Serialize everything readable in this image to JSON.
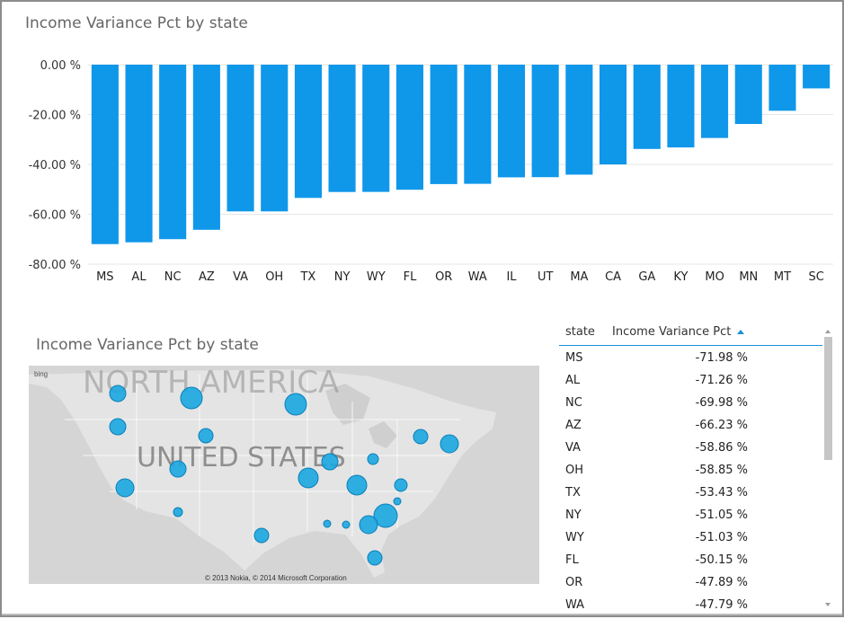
{
  "chart_data": [
    {
      "type": "bar",
      "title": "Income Variance Pct by state",
      "xlabel": "",
      "ylabel": "",
      "ylim": [
        -80,
        0
      ],
      "yticks": [
        "0.00 %",
        "-20.00 %",
        "-40.00 %",
        "-60.00 %",
        "-80.00 %"
      ],
      "bar_color": "#0f97ea",
      "categories": [
        "MS",
        "AL",
        "NC",
        "AZ",
        "VA",
        "OH",
        "TX",
        "NY",
        "WY",
        "FL",
        "OR",
        "WA",
        "IL",
        "UT",
        "MA",
        "CA",
        "GA",
        "KY",
        "MO",
        "MN",
        "MT",
        "SC"
      ],
      "values": [
        -71.98,
        -71.26,
        -69.98,
        -66.23,
        -58.86,
        -58.85,
        -53.43,
        -51.05,
        -51.03,
        -50.15,
        -47.89,
        -47.79,
        -45.2,
        -45.1,
        -44.1,
        -40.0,
        -33.8,
        -33.2,
        -29.4,
        -23.8,
        -18.5,
        -9.5
      ],
      "grid": true
    },
    {
      "type": "table",
      "columns": [
        "state",
        "Income Variance Pct"
      ],
      "sort": "ascending",
      "rows": [
        [
          "MS",
          "-71.98 %"
        ],
        [
          "AL",
          "-71.26 %"
        ],
        [
          "NC",
          "-69.98 %"
        ],
        [
          "AZ",
          "-66.23 %"
        ],
        [
          "VA",
          "-58.86 %"
        ],
        [
          "OH",
          "-58.85 %"
        ],
        [
          "TX",
          "-53.43 %"
        ],
        [
          "NY",
          "-51.05 %"
        ],
        [
          "WY",
          "-51.03 %"
        ],
        [
          "FL",
          "-50.15 %"
        ],
        [
          "OR",
          "-47.89 %"
        ],
        [
          "WA",
          "-47.79 %"
        ]
      ]
    }
  ],
  "map": {
    "title": "Income Variance Pct by state",
    "logo": "bing",
    "region_label": "NORTH AMERICA",
    "country_label": "UNITED STATES",
    "copyright": "© 2013 Nokia, © 2014 Microsoft Corporation",
    "bubble_color": "#1aa6e0",
    "land_color": "#e4e4e4"
  }
}
